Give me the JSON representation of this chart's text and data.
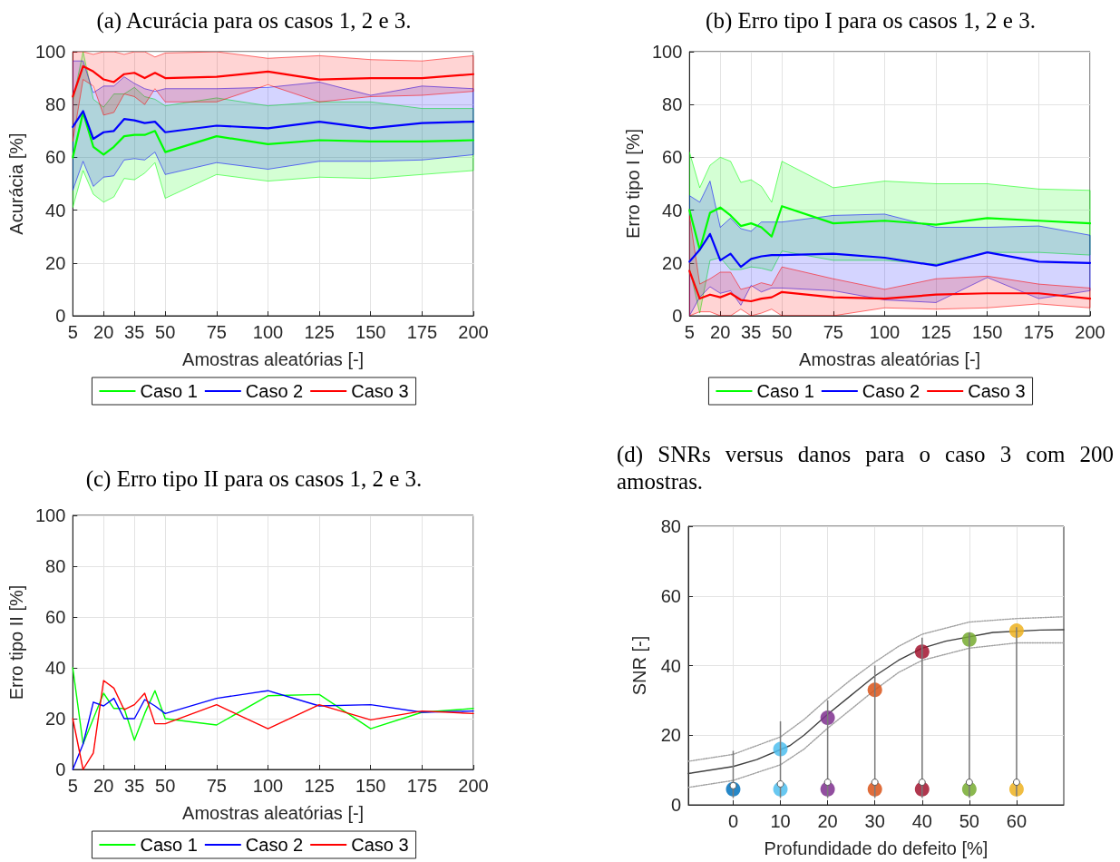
{
  "chart_data": [
    {
      "type": "line",
      "title": "(a) Acurácia para os casos 1, 2 e 3.",
      "xlabel": "Amostras aleatórias [-]",
      "ylabel": "Acurácia [%]",
      "xlim": [
        5,
        200
      ],
      "xticks": [
        5,
        20,
        35,
        50,
        75,
        100,
        125,
        150,
        175,
        200
      ],
      "ylim": [
        0,
        100
      ],
      "yticks": [
        0,
        20,
        40,
        60,
        80,
        100
      ],
      "grid": true,
      "legend": "bottom",
      "marker": "none",
      "line_style": "solid",
      "x": [
        5,
        10,
        15,
        20,
        25,
        30,
        35,
        40,
        45,
        50,
        75,
        100,
        125,
        150,
        175,
        200
      ],
      "series": [
        {
          "name": "Caso 1",
          "color": "#00ff00",
          "values": [
            60,
            77,
            64,
            61,
            64,
            68,
            68.5,
            68.5,
            70,
            62,
            68,
            65,
            66.5,
            66,
            66,
            66.5
          ],
          "upper": [
            81,
            100,
            82,
            79,
            84,
            84,
            86.5,
            83,
            82,
            79.5,
            82.5,
            79.5,
            81,
            81,
            78.5,
            78.5
          ],
          "lower": [
            41,
            55,
            46,
            43,
            45,
            52,
            51.5,
            54,
            58,
            44.5,
            53.5,
            51,
            52.5,
            52,
            53.5,
            55
          ]
        },
        {
          "name": "Caso 2",
          "color": "#0000ff",
          "values": [
            71.5,
            77.5,
            67,
            69.5,
            70,
            74.5,
            74,
            73,
            73.5,
            69.5,
            72,
            71,
            73.5,
            71,
            73,
            73.5
          ],
          "upper": [
            96.5,
            96.5,
            84.5,
            87,
            87,
            90.5,
            88,
            86,
            85,
            86,
            86,
            86.5,
            88.5,
            83.5,
            87,
            86
          ],
          "lower": [
            47.5,
            58.5,
            49,
            52.5,
            53,
            59,
            59.5,
            59,
            62,
            53.5,
            58,
            55.5,
            58.5,
            58.5,
            59,
            61
          ]
        },
        {
          "name": "Caso 3",
          "color": "#ff0000",
          "values": [
            83,
            94.5,
            92.5,
            89.5,
            88.5,
            91.5,
            92,
            90,
            92,
            90,
            90.5,
            92.5,
            89.5,
            90,
            90,
            91.5
          ],
          "upper": [
            100,
            100,
            99,
            100,
            100,
            99,
            100,
            100,
            98,
            99.5,
            100,
            97.5,
            98.5,
            97,
            96.5,
            98.5
          ],
          "lower": [
            66,
            89.5,
            87,
            76,
            77,
            84,
            83,
            80,
            86,
            81,
            81,
            87.5,
            81,
            83,
            83.5,
            85
          ]
        }
      ]
    },
    {
      "type": "line",
      "title": "(b) Erro tipo I para os casos 1, 2 e 3.",
      "xlabel": "Amostras aleatórias [-]",
      "ylabel": "Erro tipo I [%]",
      "xlim": [
        5,
        200
      ],
      "xticks": [
        5,
        20,
        35,
        50,
        75,
        100,
        125,
        150,
        175,
        200
      ],
      "ylim": [
        0,
        100
      ],
      "yticks": [
        0,
        20,
        40,
        60,
        80,
        100
      ],
      "grid": true,
      "legend": "bottom",
      "marker": "none",
      "line_style": "solid",
      "x": [
        5,
        10,
        15,
        20,
        25,
        30,
        35,
        40,
        45,
        50,
        75,
        100,
        125,
        150,
        175,
        200
      ],
      "series": [
        {
          "name": "Caso 1",
          "color": "#00ff00",
          "values": [
            40,
            25,
            39,
            41,
            38,
            34,
            35,
            33.5,
            30,
            41.5,
            35,
            36,
            34.5,
            37,
            36,
            35
          ],
          "upper": [
            62,
            48.5,
            57,
            60,
            58.5,
            50.5,
            51.5,
            49,
            43,
            58.5,
            48.5,
            51,
            50,
            50,
            48,
            47.5
          ],
          "lower": [
            18,
            1,
            21,
            22,
            17.5,
            17.5,
            18.5,
            18,
            17,
            24.5,
            21,
            21,
            19.5,
            24,
            24,
            23
          ]
        },
        {
          "name": "Caso 2",
          "color": "#0000ff",
          "values": [
            20.5,
            25,
            31,
            21,
            23.5,
            18.5,
            21.5,
            22.5,
            23,
            23,
            23.5,
            22,
            19,
            24,
            20.5,
            20
          ],
          "upper": [
            45.5,
            43,
            51,
            33.5,
            37,
            33,
            32,
            35.5,
            35.5,
            35.5,
            38,
            38.5,
            33.5,
            33.5,
            34,
            30.5
          ],
          "lower": [
            0,
            7,
            11,
            8.5,
            9.5,
            4,
            11.5,
            9,
            10.5,
            10.5,
            9.5,
            6,
            5,
            14.5,
            6.5,
            9.5
          ]
        },
        {
          "name": "Caso 3",
          "color": "#ff0000",
          "values": [
            17,
            6.5,
            8,
            7,
            8.5,
            6,
            5.5,
            6.5,
            7,
            9,
            7,
            6.5,
            8,
            8.5,
            8.5,
            6.5
          ],
          "upper": [
            38,
            12,
            14,
            16.5,
            16.5,
            10,
            11,
            12.5,
            11.5,
            18.5,
            14,
            10,
            14,
            15,
            12,
            10.5
          ],
          "lower": [
            0,
            1.5,
            1.5,
            0,
            0,
            2.5,
            0,
            1,
            2.5,
            0,
            0,
            3,
            2.5,
            3,
            4.5,
            3
          ]
        }
      ]
    },
    {
      "type": "line",
      "title": "(c) Erro tipo II para os casos 1, 2 e 3.",
      "xlabel": "Amostras aleatórias [-]",
      "ylabel": "Erro tipo II [%]",
      "xlim": [
        5,
        200
      ],
      "xticks": [
        5,
        20,
        35,
        50,
        75,
        100,
        125,
        150,
        175,
        200
      ],
      "ylim": [
        0,
        100
      ],
      "yticks": [
        0,
        20,
        40,
        60,
        80,
        100
      ],
      "grid": true,
      "legend": "bottom",
      "marker": "none",
      "line_style": "solid",
      "x": [
        5,
        10,
        15,
        20,
        25,
        30,
        35,
        40,
        45,
        50,
        75,
        100,
        125,
        150,
        175,
        200
      ],
      "series": [
        {
          "name": "Caso 1",
          "color": "#00ff00",
          "values": [
            40,
            10,
            20,
            30,
            24,
            24,
            11.5,
            22,
            31,
            20,
            17.5,
            29,
            29.5,
            16,
            22.5,
            24
          ]
        },
        {
          "name": "Caso 2",
          "color": "#0000ff",
          "values": [
            0,
            10,
            26.5,
            25,
            28,
            20,
            20,
            27.5,
            25,
            22,
            28,
            31,
            25,
            25.5,
            22.5,
            23
          ]
        },
        {
          "name": "Caso 3",
          "color": "#ff0000",
          "values": [
            20,
            0,
            6.5,
            35,
            32,
            23.5,
            25.5,
            30,
            18,
            18,
            25.5,
            16,
            25.5,
            19.5,
            23,
            22
          ]
        }
      ]
    },
    {
      "type": "scatter",
      "title": "(d) SNRs versus danos para o caso 3 com 200 amostras.",
      "xlabel": "Profundidade do defeito [%]",
      "ylabel": "SNR [-]",
      "xlim": [
        -9.5,
        70
      ],
      "xticks": [
        0,
        10,
        20,
        30,
        40,
        50,
        60
      ],
      "ylim": [
        0,
        80
      ],
      "yticks": [
        0,
        20,
        40,
        60,
        80
      ],
      "grid": true,
      "series": [
        {
          "type": "line",
          "color": "#404040",
          "marker": "none",
          "line_style": "solid",
          "x": [
            -9.5,
            0,
            5,
            12,
            15,
            20,
            25,
            30,
            35,
            40,
            45,
            55,
            65,
            70
          ],
          "values": [
            9,
            11,
            13,
            17,
            20,
            26,
            31.5,
            37,
            41.5,
            45,
            47,
            49.5,
            50.2,
            50.3
          ]
        },
        {
          "type": "line",
          "color": "#a0a0a0",
          "marker": "none",
          "line_style": "dotted",
          "x": [
            -9.5,
            0,
            10,
            15,
            20,
            25,
            30,
            35,
            40,
            50,
            60,
            70
          ],
          "values": [
            12.5,
            14.5,
            19.5,
            24.5,
            30.5,
            36,
            41,
            45.5,
            49,
            52.5,
            53.5,
            54
          ]
        },
        {
          "type": "line",
          "color": "#a0a0a0",
          "marker": "none",
          "line_style": "dotted",
          "x": [
            -9.5,
            0,
            10,
            15,
            20,
            25,
            30,
            35,
            40,
            50,
            60,
            70
          ],
          "values": [
            5,
            7,
            11.5,
            16,
            22,
            27.5,
            33,
            38,
            41.5,
            45,
            46.5,
            46.5
          ]
        },
        {
          "marker": "circle",
          "x": [
            0,
            10,
            20,
            30,
            40,
            50,
            60
          ],
          "values": [
            4.5,
            4.5,
            4.5,
            4.5,
            4.5,
            4.5,
            4.5
          ],
          "colors": [
            "#0072bd",
            "#4dbeee",
            "#7e2f8e",
            "#d95319",
            "#a2142f",
            "#77ac30",
            "#edb120"
          ]
        },
        {
          "marker": "circle",
          "x": [
            10,
            20,
            30,
            40,
            50,
            60
          ],
          "values": [
            16,
            25,
            33,
            44,
            47.5,
            50
          ],
          "colors": [
            "#4dbeee",
            "#7e2f8e",
            "#d95319",
            "#a2142f",
            "#77ac30",
            "#edb120"
          ]
        },
        {
          "marker": "circle",
          "color": "#ffffff",
          "x": [
            0,
            10,
            20,
            30,
            40,
            50,
            60
          ],
          "values": [
            5.5,
            6,
            6.5,
            6.5,
            6.5,
            6.5,
            6.5
          ],
          "errors": [
            [
              2,
              15.5
            ],
            [
              2,
              24
            ],
            [
              2,
              30
            ],
            [
              2,
              40
            ],
            [
              2,
              48
            ],
            [
              2,
              49.5
            ],
            [
              2.5,
              51
            ]
          ]
        }
      ]
    }
  ]
}
